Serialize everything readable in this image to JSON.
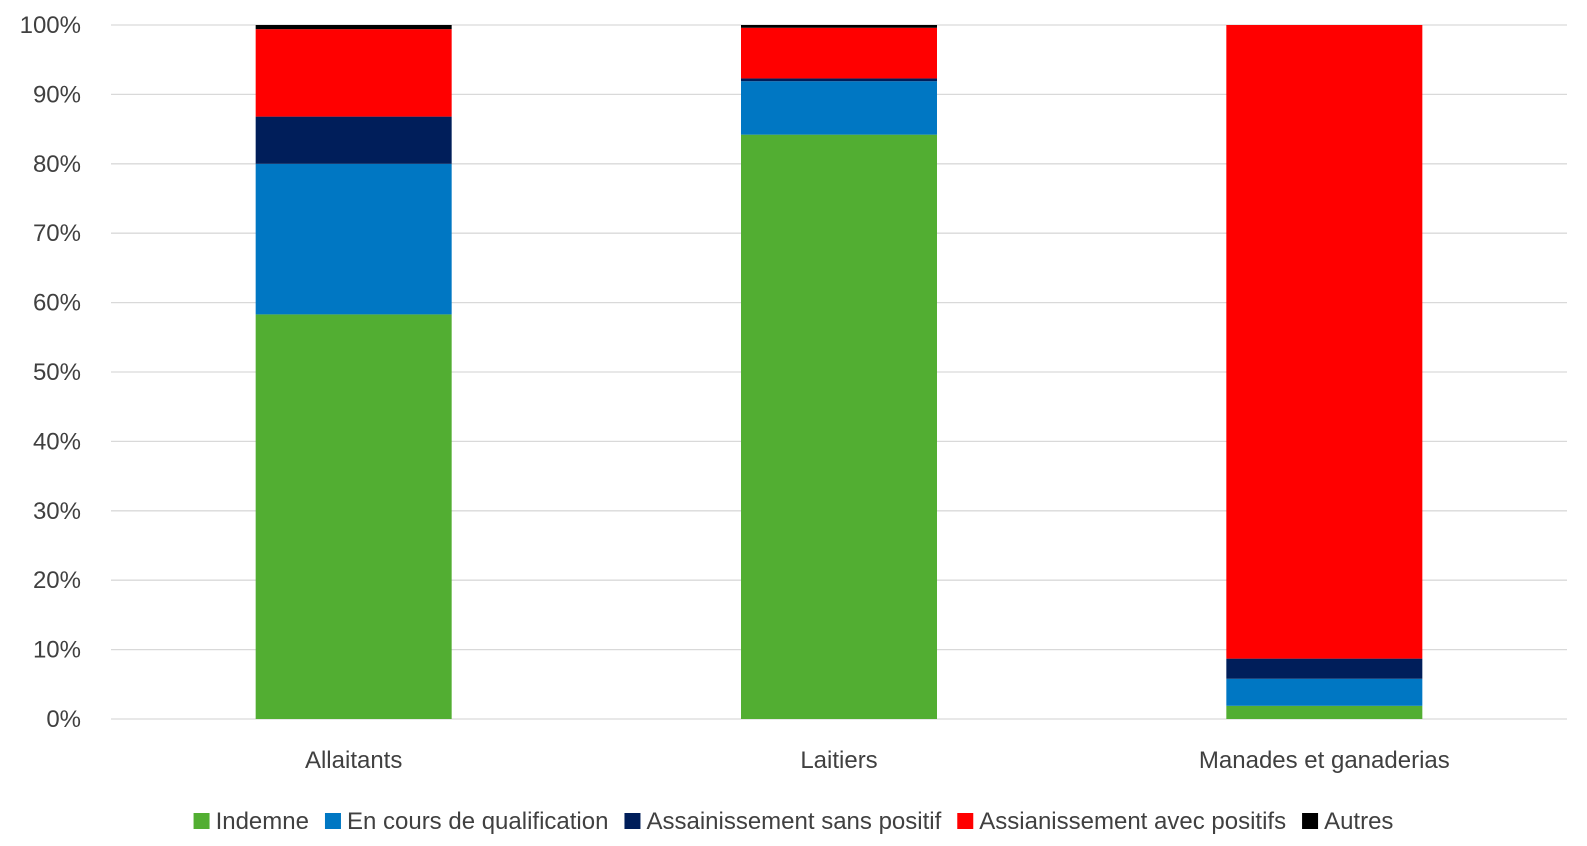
{
  "chart_data": {
    "type": "bar",
    "stacked": true,
    "percent_stacked": true,
    "categories": [
      "Allaitants",
      "Laitiers",
      "Manades et ganaderias"
    ],
    "series": [
      {
        "name": "Indemne",
        "color": "#52AE32",
        "values": [
          58.3,
          84.2,
          1.9
        ]
      },
      {
        "name": "En cours de qualification",
        "color": "#0077C3",
        "values": [
          21.7,
          7.7,
          3.9
        ]
      },
      {
        "name": "Assainissement sans positif",
        "color": "#001E5A",
        "values": [
          6.8,
          0.4,
          2.9
        ]
      },
      {
        "name": "Assianissement avec positifs",
        "color": "#FF0000",
        "values": [
          12.6,
          7.3,
          91.3
        ]
      },
      {
        "name": "Autres",
        "color": "#000000",
        "values": [
          0.6,
          0.4,
          0.0
        ]
      }
    ],
    "ylim": [
      0,
      100
    ],
    "yticks": [
      "0%",
      "10%",
      "20%",
      "30%",
      "40%",
      "50%",
      "60%",
      "70%",
      "80%",
      "90%",
      "100%"
    ],
    "grid": true,
    "legend_position": "bottom"
  }
}
